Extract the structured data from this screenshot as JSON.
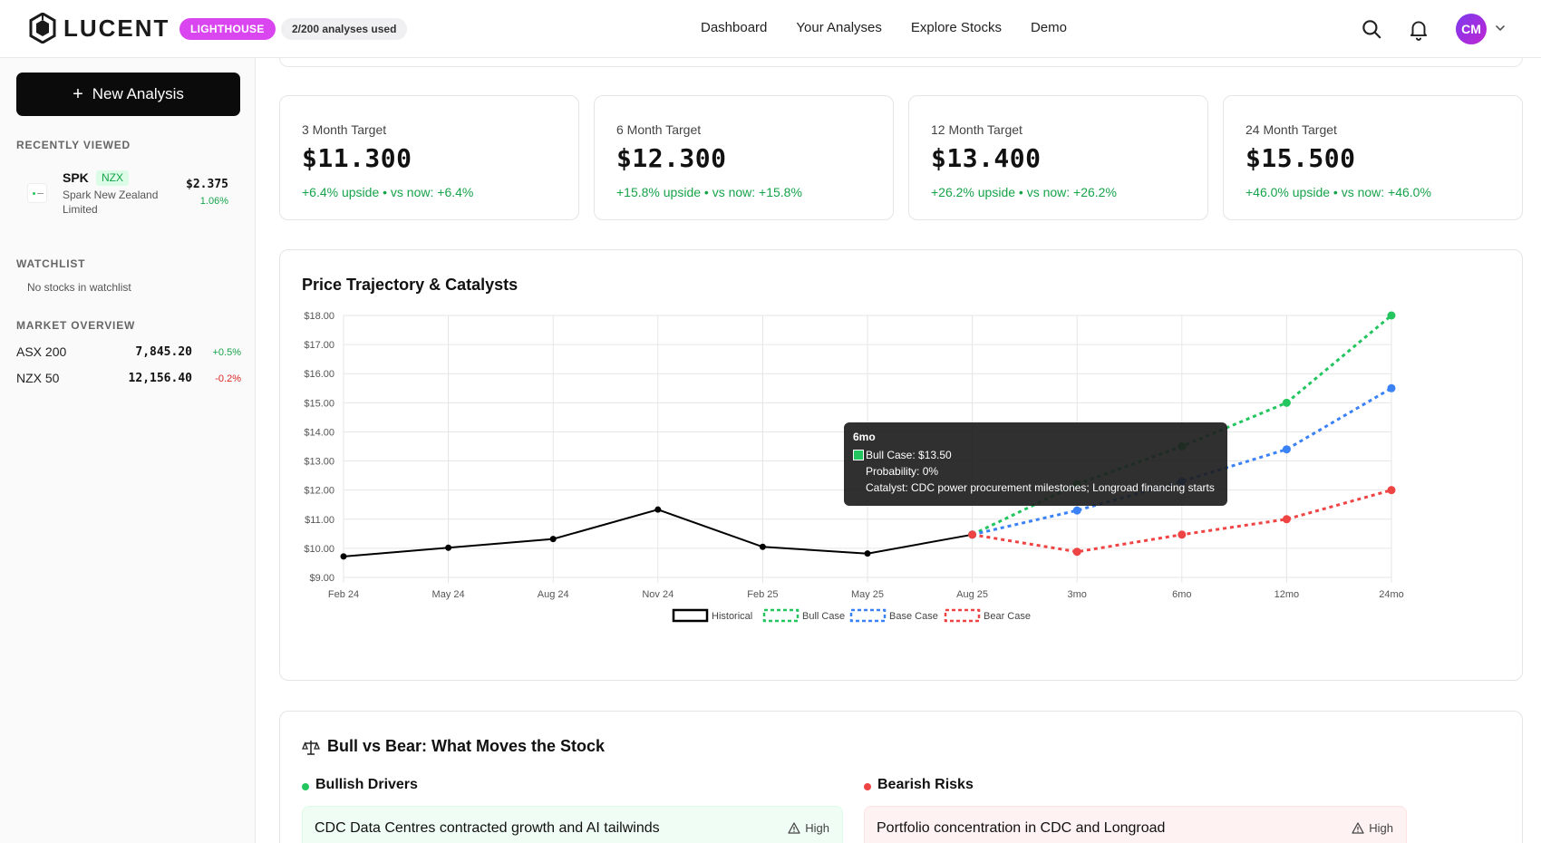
{
  "header": {
    "brand": "LUCENT",
    "plan_badge": "LIGHTHOUSE",
    "usage": "2/200 analyses used",
    "nav": [
      "Dashboard",
      "Your Analyses",
      "Explore Stocks",
      "Demo"
    ],
    "avatar_initials": "CM",
    "icons": [
      "search-icon",
      "bell-icon",
      "chevron-down-icon"
    ]
  },
  "sidebar": {
    "new_button": "New Analysis",
    "recently_viewed_heading": "RECENTLY VIEWED",
    "recent": {
      "ticker": "SPK",
      "exchange": "NZX",
      "name": "Spark New Zealand Limited",
      "price": "$2.375",
      "change": "1.06%"
    },
    "watchlist_heading": "WATCHLIST",
    "watchlist_empty": "No stocks in watchlist",
    "market_heading": "MARKET OVERVIEW",
    "markets": [
      {
        "name": "ASX 200",
        "value": "7,845.20",
        "change": "+0.5%"
      },
      {
        "name": "NZX 50",
        "value": "12,156.40",
        "change": "-0.2%"
      }
    ]
  },
  "targets": [
    {
      "label": "3 Month Target",
      "price": "$11.300",
      "sub": "+6.4% upside • vs now: +6.4%"
    },
    {
      "label": "6 Month Target",
      "price": "$12.300",
      "sub": "+15.8% upside • vs now: +15.8%"
    },
    {
      "label": "12 Month Target",
      "price": "$13.400",
      "sub": "+26.2% upside • vs now: +26.2%"
    },
    {
      "label": "24 Month Target",
      "price": "$15.500",
      "sub": "+46.0% upside • vs now: +46.0%"
    }
  ],
  "chart_title": "Price Trajectory & Catalysts",
  "tooltip": {
    "title": "6mo",
    "line1": "Bull Case: $13.50",
    "line2": "Probability: 0%",
    "line3": "Catalyst: CDC power procurement milestones; Longroad financing starts"
  },
  "chart_data": {
    "type": "line",
    "title": "Price Trajectory & Catalysts",
    "categories": [
      "Feb 24",
      "May 24",
      "Aug 24",
      "Nov 24",
      "Feb 25",
      "May 25",
      "Aug 25",
      "3mo",
      "6mo",
      "12mo",
      "24mo"
    ],
    "ylim": [
      9,
      18
    ],
    "yticks": [
      "$9.00",
      "$10.00",
      "$11.00",
      "$12.00",
      "$13.00",
      "$14.00",
      "$15.00",
      "$16.00",
      "$17.00",
      "$18.00"
    ],
    "grid": true,
    "legend_position": "bottom",
    "series": [
      {
        "name": "Historical",
        "color": "#000000",
        "style": "solid",
        "values": [
          9.72,
          10.02,
          10.32,
          11.33,
          10.05,
          9.82,
          10.47,
          null,
          null,
          null,
          null
        ]
      },
      {
        "name": "Bull Case",
        "color": "#22c55e",
        "style": "dashed",
        "values": [
          null,
          null,
          null,
          null,
          null,
          null,
          10.47,
          12.2,
          13.5,
          15.0,
          18.0
        ]
      },
      {
        "name": "Base Case",
        "color": "#3b82f6",
        "style": "dashed",
        "values": [
          null,
          null,
          null,
          null,
          null,
          null,
          10.47,
          11.3,
          12.3,
          13.4,
          15.5
        ]
      },
      {
        "name": "Bear Case",
        "color": "#ef4444",
        "style": "dashed",
        "values": [
          null,
          null,
          null,
          null,
          null,
          null,
          10.47,
          9.88,
          10.47,
          11.0,
          12.0
        ]
      }
    ]
  },
  "bull_bear": {
    "title": "Bull vs Bear: What Moves the Stock",
    "bull_heading": "Bullish Drivers",
    "bear_heading": "Bearish Risks",
    "bull_item": {
      "text": "CDC Data Centres contracted growth and AI tailwinds",
      "impact": "High"
    },
    "bear_item": {
      "text": "Portfolio concentration in CDC and Longroad",
      "impact": "High"
    },
    "colors": {
      "bull": "#22c55e",
      "bear": "#ef4444",
      "bull_bg": "#f0fdf4",
      "bear_bg": "#fef2f2"
    }
  }
}
